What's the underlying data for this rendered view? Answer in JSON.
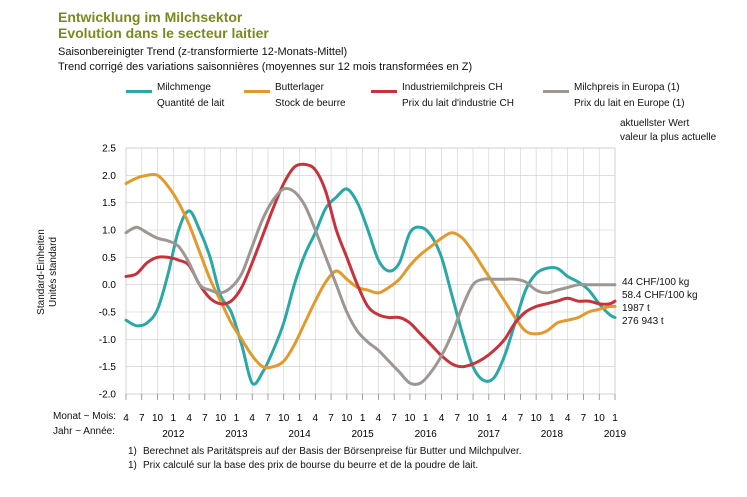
{
  "header": {
    "title_de": "Entwicklung im Milchsektor",
    "title_fr": "Evolution dans le secteur laitier",
    "subtitle_de": "Saisonbereinigter Trend (z-transformierte 12-Monats-Mittel)",
    "subtitle_fr": "Trend corrigé des variations saisonnières (moyennes sur 12 mois transformées en Z)"
  },
  "legend": [
    {
      "de": "Milchmenge",
      "fr": "Quantité de lait",
      "color": "#2aa8a8"
    },
    {
      "de": "Butterlager",
      "fr": "Stock de beurre",
      "color": "#e39a2c"
    },
    {
      "de": "Industriemilchpreis CH",
      "fr": "Prix du lait d'industrie CH",
      "color": "#c8323a"
    },
    {
      "de": "Milchpreis in Europa (1)",
      "fr": "Prix du lait en Europe (1)",
      "color": "#9e9691"
    }
  ],
  "latest": {
    "label_de": "aktuellster Wert",
    "label_fr": "valeur la plus actuelle",
    "values": [
      "44 CHF/100 kg",
      "58.4 CHF/100 kg",
      "1987 t",
      "276 943 t"
    ]
  },
  "axis": {
    "ylabel_de": "Standard-Einheiten",
    "ylabel_fr": "Unités standard",
    "month_row_label": "Monat ~ Mois:",
    "year_row_label": "Jahr ~ Année:"
  },
  "footnotes": [
    "Berechnet als Paritätspreis auf der Basis der Börsenpreise für Butter und Milchpulver.",
    "Prix calculé sur la base des prix de bourse du beurre et de la poudre de lait."
  ],
  "footnote_mark": "1)",
  "chart_data": {
    "type": "line",
    "ylim": [
      -2.0,
      2.5
    ],
    "yticks": [
      "2.5",
      "2.0",
      "1.5",
      "1.0",
      "0.5",
      "0.0",
      "-0.5",
      "-1.0",
      "-1.5",
      "-2.0"
    ],
    "x_start": "2011-04",
    "x_end": "2019-01",
    "month_ticks": [
      "4",
      "7",
      "10",
      "1",
      "4",
      "7",
      "10",
      "1",
      "4",
      "7",
      "10",
      "1",
      "4",
      "7",
      "10",
      "1",
      "4",
      "7",
      "10",
      "1",
      "4",
      "7",
      "10",
      "1",
      "4",
      "7",
      "10",
      "1",
      "4",
      "7",
      "10",
      "1"
    ],
    "years": [
      "2012",
      "2013",
      "2014",
      "2015",
      "2016",
      "2017",
      "2018",
      "2019"
    ],
    "grid": true,
    "series": [
      {
        "name": "Milchmenge",
        "color": "#2aa8a8",
        "x": [
          "2011-04",
          "2011-06",
          "2011-08",
          "2011-10",
          "2011-12",
          "2012-02",
          "2012-04",
          "2012-06",
          "2012-08",
          "2012-10",
          "2012-12",
          "2013-02",
          "2013-04",
          "2013-06",
          "2013-08",
          "2013-10",
          "2013-12",
          "2014-02",
          "2014-04",
          "2014-06",
          "2014-08",
          "2014-10",
          "2014-12",
          "2015-02",
          "2015-04",
          "2015-06",
          "2015-08",
          "2015-10",
          "2015-12",
          "2016-02",
          "2016-04",
          "2016-06",
          "2016-08",
          "2016-10",
          "2016-12",
          "2017-02",
          "2017-04",
          "2017-06",
          "2017-08",
          "2017-10",
          "2017-12",
          "2018-02",
          "2018-04",
          "2018-06",
          "2018-08",
          "2018-10",
          "2018-12",
          "2019-01"
        ],
        "y": [
          -0.65,
          -0.75,
          -0.7,
          -0.45,
          0.2,
          1.0,
          1.35,
          1.0,
          0.5,
          -0.2,
          -0.5,
          -1.1,
          -1.8,
          -1.6,
          -1.2,
          -0.7,
          0.0,
          0.55,
          0.95,
          1.4,
          1.6,
          1.75,
          1.5,
          1.0,
          0.45,
          0.25,
          0.4,
          0.95,
          1.05,
          0.9,
          0.5,
          -0.2,
          -0.9,
          -1.5,
          -1.75,
          -1.7,
          -1.3,
          -0.7,
          -0.1,
          0.2,
          0.3,
          0.3,
          0.15,
          0.05,
          -0.1,
          -0.35,
          -0.55,
          -0.6
        ]
      },
      {
        "name": "Butterlager",
        "color": "#e39a2c",
        "x": [
          "2011-04",
          "2011-06",
          "2011-08",
          "2011-10",
          "2011-12",
          "2012-02",
          "2012-04",
          "2012-06",
          "2012-08",
          "2012-10",
          "2012-12",
          "2013-02",
          "2013-04",
          "2013-06",
          "2013-08",
          "2013-10",
          "2013-12",
          "2014-02",
          "2014-04",
          "2014-06",
          "2014-08",
          "2014-10",
          "2014-12",
          "2015-02",
          "2015-04",
          "2015-06",
          "2015-08",
          "2015-10",
          "2015-12",
          "2016-02",
          "2016-04",
          "2016-06",
          "2016-08",
          "2016-10",
          "2016-12",
          "2017-02",
          "2017-04",
          "2017-06",
          "2017-08",
          "2017-10",
          "2017-12",
          "2018-02",
          "2018-04",
          "2018-06",
          "2018-08",
          "2018-10",
          "2018-12",
          "2019-01"
        ],
        "y": [
          1.85,
          1.95,
          2.0,
          2.0,
          1.8,
          1.5,
          1.1,
          0.6,
          0.1,
          -0.3,
          -0.7,
          -1.0,
          -1.3,
          -1.5,
          -1.5,
          -1.4,
          -1.1,
          -0.7,
          -0.3,
          0.05,
          0.25,
          0.1,
          -0.05,
          -0.1,
          -0.15,
          -0.05,
          0.1,
          0.35,
          0.55,
          0.7,
          0.85,
          0.95,
          0.85,
          0.6,
          0.3,
          0.0,
          -0.3,
          -0.6,
          -0.85,
          -0.9,
          -0.85,
          -0.7,
          -0.65,
          -0.6,
          -0.5,
          -0.45,
          -0.4,
          -0.4
        ]
      },
      {
        "name": "Industriemilchpreis CH",
        "color": "#c8323a",
        "x": [
          "2011-04",
          "2011-06",
          "2011-08",
          "2011-10",
          "2011-12",
          "2012-02",
          "2012-04",
          "2012-06",
          "2012-08",
          "2012-10",
          "2012-12",
          "2013-02",
          "2013-04",
          "2013-06",
          "2013-08",
          "2013-10",
          "2013-12",
          "2014-02",
          "2014-04",
          "2014-06",
          "2014-08",
          "2014-10",
          "2014-12",
          "2015-02",
          "2015-04",
          "2015-06",
          "2015-08",
          "2015-10",
          "2015-12",
          "2016-02",
          "2016-04",
          "2016-06",
          "2016-08",
          "2016-10",
          "2016-12",
          "2017-02",
          "2017-04",
          "2017-06",
          "2017-08",
          "2017-10",
          "2017-12",
          "2018-02",
          "2018-04",
          "2018-06",
          "2018-08",
          "2018-10",
          "2018-12",
          "2019-01"
        ],
        "y": [
          0.15,
          0.2,
          0.4,
          0.5,
          0.5,
          0.45,
          0.35,
          0.0,
          -0.25,
          -0.35,
          -0.3,
          -0.05,
          0.4,
          0.9,
          1.4,
          1.85,
          2.15,
          2.2,
          2.1,
          1.7,
          1.0,
          0.5,
          0.0,
          -0.4,
          -0.55,
          -0.6,
          -0.6,
          -0.7,
          -0.9,
          -1.1,
          -1.3,
          -1.45,
          -1.5,
          -1.45,
          -1.35,
          -1.2,
          -1.0,
          -0.7,
          -0.5,
          -0.4,
          -0.35,
          -0.3,
          -0.25,
          -0.3,
          -0.3,
          -0.35,
          -0.35,
          -0.3
        ]
      },
      {
        "name": "Milchpreis in Europa (1)",
        "color": "#9e9691",
        "x": [
          "2011-04",
          "2011-06",
          "2011-08",
          "2011-10",
          "2011-12",
          "2012-02",
          "2012-04",
          "2012-06",
          "2012-08",
          "2012-10",
          "2012-12",
          "2013-02",
          "2013-04",
          "2013-06",
          "2013-08",
          "2013-10",
          "2013-12",
          "2014-02",
          "2014-04",
          "2014-06",
          "2014-08",
          "2014-10",
          "2014-12",
          "2015-02",
          "2015-04",
          "2015-06",
          "2015-08",
          "2015-10",
          "2015-12",
          "2016-02",
          "2016-04",
          "2016-06",
          "2016-08",
          "2016-10",
          "2016-12",
          "2017-02",
          "2017-04",
          "2017-06",
          "2017-08",
          "2017-10",
          "2017-12",
          "2018-02",
          "2018-04",
          "2018-06",
          "2018-08",
          "2018-10",
          "2018-12",
          "2019-01"
        ],
        "y": [
          0.95,
          1.05,
          0.95,
          0.85,
          0.8,
          0.7,
          0.4,
          0.0,
          -0.1,
          -0.15,
          -0.05,
          0.2,
          0.7,
          1.2,
          1.55,
          1.75,
          1.7,
          1.45,
          1.0,
          0.5,
          0.0,
          -0.5,
          -0.85,
          -1.05,
          -1.2,
          -1.4,
          -1.6,
          -1.8,
          -1.8,
          -1.6,
          -1.3,
          -0.9,
          -0.4,
          0.0,
          0.1,
          0.1,
          0.1,
          0.1,
          0.05,
          -0.1,
          -0.15,
          -0.1,
          -0.05,
          0.0,
          0.0,
          0.0,
          0.0,
          0.0
        ]
      }
    ]
  }
}
